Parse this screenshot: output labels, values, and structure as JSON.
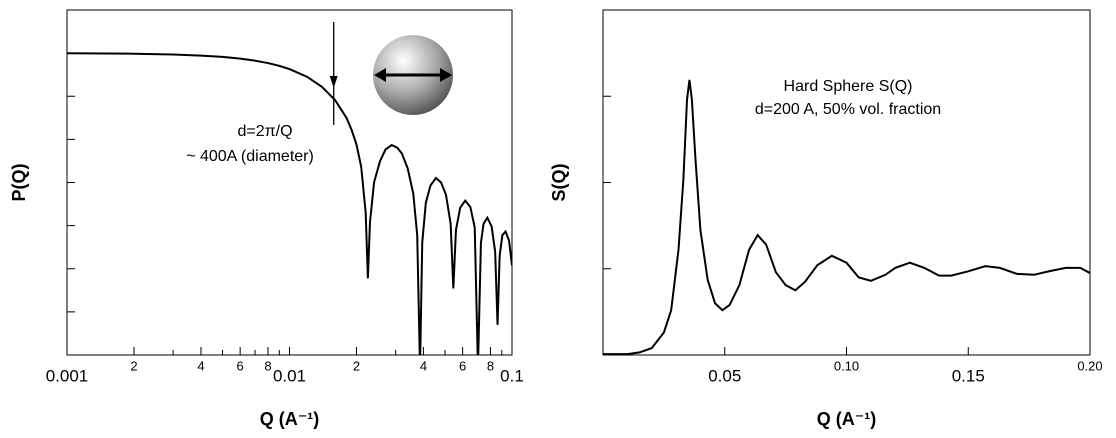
{
  "chart_data": [
    {
      "type": "line",
      "xscale": "log",
      "yscale": "log",
      "ylabel": "P(Q)",
      "xlabel": "Q (A⁻¹)",
      "annotations": [
        "d=2π/Q",
        "~ 400A (diameter)"
      ],
      "xlim": [
        0.001,
        0.1
      ],
      "ylim": [
        1e-07,
        10
      ],
      "xticks": [
        0.001,
        {
          "value": 0.002,
          "label": "2"
        },
        {
          "value": 0.004,
          "label": "4"
        },
        {
          "value": 0.006,
          "label": "6"
        },
        {
          "value": 0.008,
          "label": "8"
        },
        0.01,
        {
          "value": 0.02,
          "label": "2"
        },
        {
          "value": 0.04,
          "label": "4"
        },
        {
          "value": 0.06,
          "label": "6"
        },
        {
          "value": 0.08,
          "label": "8"
        },
        0.1
      ],
      "xminorticks": [
        0.003,
        0.005,
        0.007,
        0.009,
        0.03,
        0.05,
        0.07,
        0.09
      ],
      "ytickmarks": [
        1e-06,
        1e-05,
        0.0001,
        0.001,
        0.01,
        0.1,
        1
      ],
      "arrow_x": 0.0158,
      "x": [
        0.001,
        0.0015,
        0.002,
        0.003,
        0.004,
        0.005,
        0.006,
        0.007,
        0.008,
        0.009,
        0.01,
        0.012,
        0.014,
        0.016,
        0.018,
        0.019,
        0.02,
        0.021,
        0.022,
        0.0225,
        0.023,
        0.024,
        0.0255,
        0.027,
        0.0288,
        0.0305,
        0.032,
        0.034,
        0.036,
        0.0375,
        0.0386,
        0.0395,
        0.041,
        0.043,
        0.0455,
        0.048,
        0.0505,
        0.053,
        0.0545,
        0.056,
        0.0585,
        0.0616,
        0.065,
        0.068,
        0.0703,
        0.0725,
        0.0745,
        0.0775,
        0.081,
        0.084,
        0.0861,
        0.088,
        0.0905,
        0.0935,
        0.097,
        0.1
      ],
      "series": [
        {
          "color": "#000000",
          "values": [
            0.992,
            0.982,
            0.968,
            0.93,
            0.877,
            0.817,
            0.746,
            0.668,
            0.588,
            0.506,
            0.427,
            0.282,
            0.165,
            0.0824,
            0.0321,
            0.0168,
            0.00758,
            0.00231,
            0.0002,
            6e-06,
            0.00012,
            0.00102,
            0.0031,
            0.0058,
            0.0074,
            0.0064,
            0.0047,
            0.0021,
            0.00055,
            6e-05,
            5e-08,
            4e-05,
            0.00034,
            0.00085,
            0.00127,
            0.001,
            0.00052,
            0.00011,
            3.5e-06,
            8e-05,
            0.00026,
            0.00038,
            0.00027,
            9e-05,
            5e-08,
            4e-05,
            0.00011,
            0.000153,
            9.5e-05,
            2.5e-05,
            5e-07,
            2e-05,
            6e-05,
            7.3e-05,
            4.5e-05,
            1.2e-05
          ]
        }
      ]
    },
    {
      "type": "line",
      "xscale": "linear",
      "yscale": "linear",
      "ylabel": "S(Q)",
      "xlabel": "Q (A⁻¹)",
      "annotations": [
        "Hard Sphere S(Q)",
        "d=200 A, 50% vol. fraction"
      ],
      "xlim": [
        0,
        0.2
      ],
      "ylim": [
        0,
        4
      ],
      "xticks": [
        0.05,
        {
          "value": 0.1,
          "label": "0.10"
        },
        0.15,
        {
          "value": 0.2,
          "label": "0.20"
        }
      ],
      "ytickmarks": [
        1,
        2,
        3
      ],
      "x": [
        0,
        0.01,
        0.015,
        0.02,
        0.025,
        0.028,
        0.031,
        0.033,
        0.0345,
        0.0355,
        0.0365,
        0.038,
        0.04,
        0.043,
        0.046,
        0.049,
        0.052,
        0.056,
        0.06,
        0.0635,
        0.067,
        0.071,
        0.075,
        0.079,
        0.083,
        0.088,
        0.094,
        0.1,
        0.105,
        0.11,
        0.116,
        0.12,
        0.126,
        0.132,
        0.138,
        0.143,
        0.15,
        0.157,
        0.163,
        0.17,
        0.177,
        0.183,
        0.19,
        0.196,
        0.2
      ],
      "series": [
        {
          "color": "#000000",
          "values": [
            0.01,
            0.01,
            0.03,
            0.08,
            0.26,
            0.52,
            1.22,
            2.03,
            2.96,
            3.19,
            2.96,
            2.26,
            1.45,
            0.87,
            0.6,
            0.52,
            0.58,
            0.81,
            1.22,
            1.39,
            1.28,
            0.96,
            0.81,
            0.75,
            0.85,
            1.04,
            1.15,
            1.07,
            0.9,
            0.86,
            0.93,
            1.01,
            1.07,
            1.01,
            0.92,
            0.92,
            0.97,
            1.03,
            1.01,
            0.94,
            0.93,
            0.97,
            1.01,
            1.01,
            0.95
          ]
        }
      ]
    }
  ]
}
